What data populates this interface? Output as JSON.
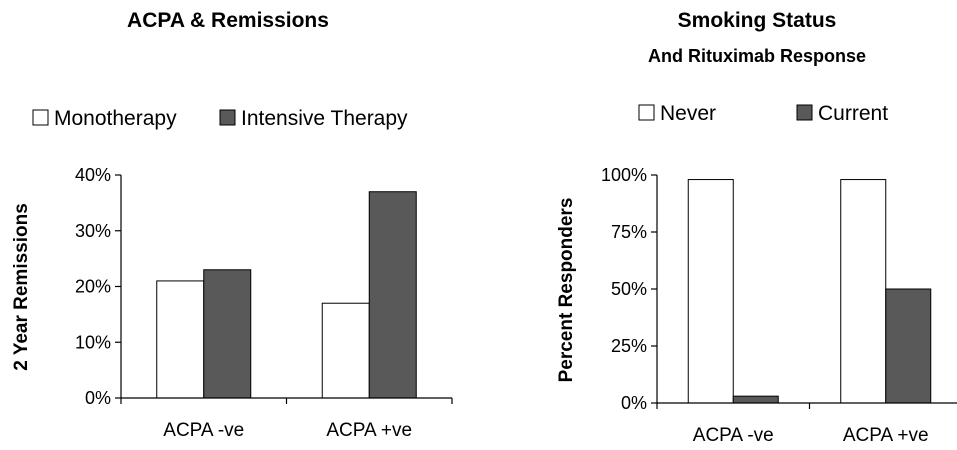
{
  "chart_data": [
    {
      "type": "bar",
      "title": "ACPA & Remissions",
      "subtitle": "",
      "xlabel": "",
      "ylabel": "2 Year Remissions",
      "categories": [
        "ACPA -ve",
        "ACPA +ve"
      ],
      "series": [
        {
          "name": "Monotherapy",
          "values": [
            21,
            17
          ],
          "color": "#ffffff"
        },
        {
          "name": "Intensive Therapy",
          "values": [
            23,
            37
          ],
          "color": "#595959"
        }
      ],
      "ylim": [
        0,
        40
      ],
      "yticks": [
        0,
        10,
        20,
        30,
        40
      ],
      "ytick_labels": [
        "0%",
        "10%",
        "20%",
        "30%",
        "40%"
      ],
      "legend_position": "top",
      "grid": false
    },
    {
      "type": "bar",
      "title": "Smoking Status",
      "subtitle": "And Rituximab Response",
      "xlabel": "",
      "ylabel": "Percent Responders",
      "categories": [
        "ACPA -ve",
        "ACPA +ve"
      ],
      "series": [
        {
          "name": "Never",
          "values": [
            98,
            98
          ],
          "color": "#ffffff"
        },
        {
          "name": "Current",
          "values": [
            3,
            50
          ],
          "color": "#595959"
        }
      ],
      "ylim": [
        0,
        100
      ],
      "yticks": [
        0,
        25,
        50,
        75,
        100
      ],
      "ytick_labels": [
        "0%",
        "25%",
        "50%",
        "75%",
        "100%"
      ],
      "legend_position": "top",
      "grid": false
    }
  ]
}
